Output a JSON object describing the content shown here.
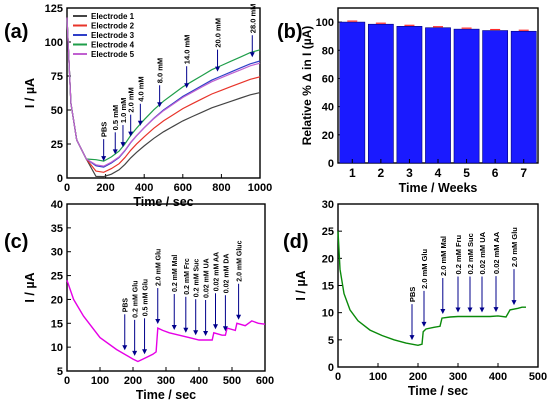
{
  "colors": {
    "axis": "#000000",
    "bar_fill": "#1a1aff",
    "bar_edge": "#00007a",
    "line_c": "#e600e6",
    "line_d": "#0a8a0a",
    "marker": "#00008b"
  },
  "panels": {
    "a": {
      "letter": "(a)"
    },
    "b": {
      "letter": "(b)"
    },
    "c": {
      "letter": "(c)"
    },
    "d": {
      "letter": "(d)"
    }
  },
  "chart_data": [
    {
      "panel": "a",
      "type": "line",
      "xlabel": "Time / sec",
      "ylabel": "I / µA",
      "xlim": [
        0,
        1000
      ],
      "ylim": [
        0,
        125
      ],
      "xticks": [
        0,
        200,
        400,
        600,
        800,
        1000
      ],
      "yticks": [
        0,
        25,
        50,
        75,
        100,
        125
      ],
      "legend_position": "top-left",
      "series": [
        {
          "name": "Electrode 1",
          "color": "#444444",
          "offset": -6,
          "scale": 0.8
        },
        {
          "name": "Electrode 2",
          "color": "#e8342a",
          "offset": -3,
          "scale": 0.9
        },
        {
          "name": "Electrode 3",
          "color": "#2f3fc8",
          "offset": 0,
          "scale": 1.0
        },
        {
          "name": "Electrode 4",
          "color": "#1f9e4a",
          "offset": 4,
          "scale": 1.05
        },
        {
          "name": "Electrode 5",
          "color": "#c060d0",
          "offset": 1,
          "scale": 0.97
        }
      ],
      "base_curve": {
        "x": [
          0,
          20,
          50,
          100,
          150,
          190,
          230,
          270,
          300,
          330,
          360,
          400,
          450,
          500,
          550,
          600,
          650,
          700,
          750,
          800,
          850,
          900,
          950,
          1000
        ],
        "y": [
          118,
          55,
          28,
          14,
          9,
          8,
          11,
          15,
          20,
          26,
          31,
          37,
          44,
          50,
          55,
          60,
          64,
          68,
          72,
          75,
          78,
          81,
          84,
          86
        ]
      },
      "annotations": [
        {
          "label": "PBS",
          "x": 190
        },
        {
          "label": "0.5 mM",
          "x": 250
        },
        {
          "label": "1.0 mM",
          "x": 290
        },
        {
          "label": "2.0 mM",
          "x": 330
        },
        {
          "label": "4.0 mM",
          "x": 380
        },
        {
          "label": "8.0 mM",
          "x": 480
        },
        {
          "label": "14.0 mM",
          "x": 620
        },
        {
          "label": "20.0 mM",
          "x": 780
        },
        {
          "label": "28.0 mM",
          "x": 960
        }
      ]
    },
    {
      "panel": "b",
      "type": "bar",
      "xlabel": "Time / Weeks",
      "ylabel": "Relative % Δ in I (µA)",
      "categories": [
        "1",
        "2",
        "3",
        "4",
        "5",
        "6",
        "7"
      ],
      "values": [
        100,
        98.5,
        97,
        96,
        95,
        94,
        93.5
      ],
      "ylim": [
        0,
        110
      ],
      "yticks": [
        0,
        20,
        40,
        60,
        80,
        100
      ]
    },
    {
      "panel": "c",
      "type": "line",
      "xlabel": "Time / sec",
      "ylabel": "I / µA",
      "xlim": [
        0,
        600
      ],
      "ylim": [
        5,
        40
      ],
      "xticks": [
        0,
        100,
        200,
        300,
        400,
        500,
        600
      ],
      "yticks": [
        5,
        10,
        15,
        20,
        25,
        30,
        35,
        40
      ],
      "series": [
        {
          "name": "",
          "x": [
            0,
            20,
            50,
            100,
            150,
            200,
            215,
            230,
            245,
            260,
            270,
            275,
            290,
            310,
            340,
            370,
            400,
            440,
            445,
            470,
            480,
            485,
            510,
            515,
            540,
            560,
            580,
            600
          ],
          "y": [
            24,
            20,
            16.5,
            12,
            9.5,
            7.5,
            7,
            7.5,
            8,
            8.5,
            9,
            14,
            13.5,
            13,
            12.5,
            12,
            11.5,
            11.5,
            13,
            12.5,
            12.5,
            14,
            13.5,
            15,
            14.5,
            15.5,
            15,
            14.8
          ]
        }
      ],
      "annotations": [
        {
          "label": "PBS",
          "x": 175
        },
        {
          "label": "0.2 mM Glu",
          "x": 205
        },
        {
          "label": "0.5 mM Glu",
          "x": 235
        },
        {
          "label": "2.0 mM Glu",
          "x": 275
        },
        {
          "label": "0.2 mM Mal",
          "x": 325
        },
        {
          "label": "0.2 mM Frc",
          "x": 360
        },
        {
          "label": "0.2 mM Suc",
          "x": 390
        },
        {
          "label": "0.02 mM UA",
          "x": 420
        },
        {
          "label": "0.02 mM AA",
          "x": 450
        },
        {
          "label": "0.02 mM DA",
          "x": 480
        },
        {
          "label": "2.0 mM Gluc",
          "x": 520
        }
      ]
    },
    {
      "panel": "d",
      "type": "line",
      "xlabel": "Time / sec",
      "ylabel": "I / µA",
      "xlim": [
        0,
        500
      ],
      "ylim": [
        0,
        30
      ],
      "xticks": [
        0,
        100,
        200,
        300,
        400,
        500
      ],
      "yticks": [
        0,
        5,
        10,
        15,
        20,
        25,
        30
      ],
      "series": [
        {
          "name": "",
          "x": [
            0,
            5,
            15,
            30,
            50,
            80,
            110,
            140,
            170,
            200,
            210,
            213,
            220,
            240,
            255,
            260,
            280,
            300,
            330,
            360,
            380,
            400,
            420,
            430,
            450,
            460,
            470
          ],
          "y": [
            25,
            18,
            13.5,
            10.5,
            8.5,
            6.8,
            5.8,
            5,
            4.4,
            4,
            4.2,
            6.5,
            7,
            7.3,
            7.5,
            9,
            9.2,
            9.3,
            9.3,
            9.3,
            9.3,
            9.4,
            9.2,
            10.5,
            10.8,
            11,
            11
          ]
        }
      ],
      "annotations": [
        {
          "label": "PBS",
          "x": 185
        },
        {
          "label": "2.0 mM Glu",
          "x": 215
        },
        {
          "label": "2.0 mM Mal",
          "x": 262
        },
        {
          "label": "0.2 mM Fru",
          "x": 300
        },
        {
          "label": "0.2 mM Suc",
          "x": 330
        },
        {
          "label": "0.02 mM UA",
          "x": 360
        },
        {
          "label": "0.02 mM AA",
          "x": 395
        },
        {
          "label": "2.0 mM Glu",
          "x": 440
        }
      ]
    }
  ]
}
